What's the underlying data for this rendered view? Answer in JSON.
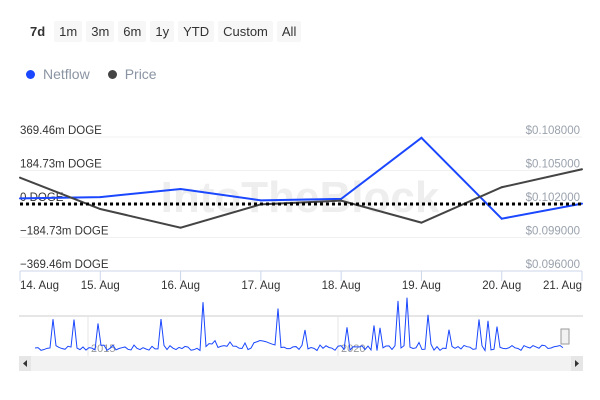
{
  "range_buttons": [
    {
      "label": "7d",
      "active": true
    },
    {
      "label": "1m"
    },
    {
      "label": "3m"
    },
    {
      "label": "6m"
    },
    {
      "label": "1y"
    },
    {
      "label": "YTD"
    },
    {
      "label": "Custom"
    },
    {
      "label": "All"
    }
  ],
  "watermark": "IntoTheBlock",
  "chart_data": {
    "type": "line",
    "categories": [
      "14. Aug",
      "15. Aug",
      "16. Aug",
      "17. Aug",
      "18. Aug",
      "19. Aug",
      "20. Aug",
      "21. Aug"
    ],
    "series": [
      {
        "name": "Netflow",
        "color": "#1a47ff",
        "axis": "left",
        "values": [
          31,
          38,
          83,
          20,
          28,
          365,
          -81,
          2
        ]
      },
      {
        "name": "Price",
        "color": "#444444",
        "axis": "right",
        "values": [
          0.10436,
          0.10155,
          0.09988,
          0.10197,
          0.1023,
          0.10033,
          0.1035,
          0.10511
        ]
      }
    ],
    "left_axis": {
      "ticks": [
        "369.46m DOGE",
        "184.73m DOGE",
        "0 DOGE",
        "−184.73m DOGE",
        "−369.46m DOGE"
      ],
      "ylim": [
        -369.46,
        369.46
      ],
      "unit": "m DOGE"
    },
    "right_axis": {
      "ticks": [
        "$0.108000",
        "$0.105000",
        "$0.102000",
        "$0.099000",
        "$0.096000"
      ],
      "ylim": [
        0.096,
        0.108
      ]
    },
    "zero_line": "dotted",
    "legend": "top-left",
    "navigator": {
      "labels": [
        "2015",
        "2020"
      ]
    }
  }
}
